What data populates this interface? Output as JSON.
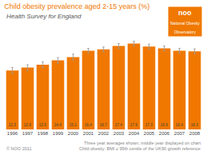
{
  "chart_data": {
    "type": "bar",
    "title": "Child obesity prevalence aged 2-15 years (%)",
    "subtitle": "Health Survey for England",
    "categories": [
      "1996",
      "1997",
      "1998",
      "1999",
      "2000",
      "2001",
      "2002",
      "2003",
      "2004",
      "2005",
      "2006",
      "2007",
      "2008"
    ],
    "values": [
      12.3,
      12.9,
      13.5,
      14.4,
      15.1,
      16.4,
      16.7,
      17.4,
      17.9,
      17.3,
      16.9,
      16.4,
      16.3
    ],
    "errors": [
      0.6,
      0.6,
      0.6,
      0.6,
      0.6,
      0.5,
      0.5,
      0.5,
      0.5,
      0.5,
      0.5,
      0.5,
      0.5
    ],
    "color": "#F07800",
    "ylim": [
      0,
      20
    ],
    "grid": false,
    "data_labels": true,
    "tick_labels": "x",
    "annotations": [
      "noo",
      "National Obesity\nObservatory",
      "© NOO 2011",
      "Three year averages shown, middle year displayed on chart\nChild obesity: BMI ≥ 95th centile of the UK90 growth reference"
    ]
  }
}
